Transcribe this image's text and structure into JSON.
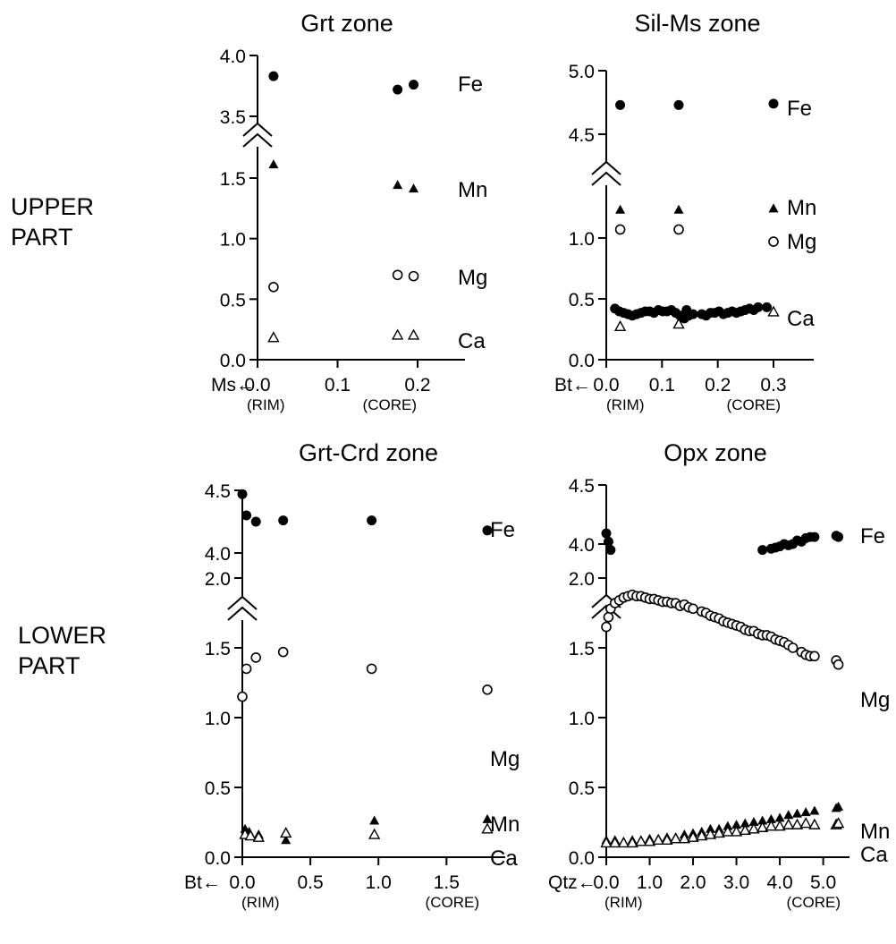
{
  "row_labels": {
    "upper": [
      "UPPER",
      "PART"
    ],
    "lower": [
      "LOWER",
      "PART"
    ]
  },
  "chart_data": [
    {
      "type": "scatter",
      "title": "Grt zone",
      "xlabel": "Ms",
      "x_range": [
        0,
        0.2
      ],
      "x_ticks": [
        "0.0",
        "0.1",
        "0.2"
      ],
      "x_start_label": "(RIM)",
      "x_end_label": "(CORE)",
      "broken_y_axis": true,
      "y_ticks_lower": [
        "0.0",
        "0.5",
        "1.0",
        "1.5"
      ],
      "y_ticks_upper": [
        "3.5",
        "4.0"
      ],
      "series": [
        {
          "name": "Fe",
          "marker": "filled-circle",
          "x": [
            0.02,
            0.175,
            0.195
          ],
          "y": [
            3.83,
            3.72,
            3.76
          ]
        },
        {
          "name": "Mn",
          "marker": "filled-triangle",
          "x": [
            0.02,
            0.175,
            0.195
          ],
          "y": [
            1.61,
            1.44,
            1.41
          ]
        },
        {
          "name": "Mg",
          "marker": "open-circle",
          "x": [
            0.02,
            0.175,
            0.195
          ],
          "y": [
            0.6,
            0.7,
            0.69
          ]
        },
        {
          "name": "Ca",
          "marker": "open-triangle",
          "x": [
            0.02,
            0.175,
            0.195
          ],
          "y": [
            0.18,
            0.2,
            0.2
          ]
        }
      ]
    },
    {
      "type": "scatter",
      "title": "Sil-Ms zone",
      "xlabel": "Bt",
      "x_range": [
        0,
        0.3
      ],
      "x_ticks": [
        "0.0",
        "0.1",
        "0.2",
        "0.3"
      ],
      "x_start_label": "(RIM)",
      "x_end_label": "(CORE)",
      "broken_y_axis": true,
      "y_ticks_lower": [
        "0.0",
        "0.5",
        "1.0"
      ],
      "y_ticks_upper": [
        "4.5",
        "5.0"
      ],
      "series": [
        {
          "name": "Fe",
          "marker": "filled-circle",
          "x": [
            0.025,
            0.13,
            0.3
          ],
          "y": [
            4.73,
            4.73,
            4.74
          ]
        },
        {
          "name": "Mn",
          "marker": "filled-triangle",
          "x": [
            0.025,
            0.13,
            0.3
          ],
          "y": [
            1.23,
            1.23,
            1.24
          ]
        },
        {
          "name": "Mg",
          "marker": "open-circle",
          "x": [
            0.025,
            0.13,
            0.3
          ],
          "y": [
            1.07,
            1.07,
            0.97
          ]
        },
        {
          "name": "Ca",
          "marker": "open-triangle",
          "x": [
            0.025,
            0.13,
            0.3
          ],
          "y": [
            0.27,
            0.29,
            0.39
          ]
        }
      ]
    },
    {
      "type": "scatter",
      "title": "Grt-Crd zone",
      "xlabel": "Bt",
      "x_range": [
        0,
        1.8
      ],
      "x_ticks": [
        "0.0",
        "0.5",
        "1.0",
        "1.5"
      ],
      "x_start_label": "(RIM)",
      "x_end_label": "(CORE)",
      "broken_y_axis": true,
      "y_ticks_lower": [
        "0.0",
        "0.5",
        "1.0",
        "1.5",
        "2.0"
      ],
      "y_ticks_upper": [
        "4.0",
        "4.5"
      ],
      "series": [
        {
          "name": "Fe",
          "marker": "filled-circle",
          "x": [
            0.0,
            0.03,
            0.1,
            0.3,
            0.95,
            1.8
          ],
          "y": [
            4.47,
            4.3,
            4.25,
            4.26,
            4.26,
            4.18
          ]
        },
        {
          "name": "Mg",
          "marker": "open-circle",
          "x": [
            0.0,
            0.03,
            0.1,
            0.3,
            0.95,
            1.8
          ],
          "y": [
            1.15,
            1.35,
            1.43,
            1.47,
            1.35,
            1.2
          ]
        },
        {
          "name": "Mn",
          "marker": "filled-triangle",
          "x": [
            0.02,
            0.05,
            0.12,
            0.32,
            0.97,
            1.8
          ],
          "y": [
            0.2,
            0.18,
            0.16,
            0.12,
            0.26,
            0.27
          ]
        },
        {
          "name": "Ca",
          "marker": "open-triangle",
          "x": [
            0.02,
            0.06,
            0.12,
            0.32,
            0.97,
            1.8
          ],
          "y": [
            0.16,
            0.15,
            0.14,
            0.17,
            0.16,
            0.2
          ]
        }
      ]
    },
    {
      "type": "scatter",
      "title": "Opx zone",
      "xlabel": "Qtz",
      "x_range": [
        0,
        5.4
      ],
      "x_ticks": [
        "0.0",
        "1.0",
        "2.0",
        "3.0",
        "4.0",
        "5.0"
      ],
      "x_start_label": "(RIM)",
      "x_end_label": "(CORE)",
      "broken_y_axis": true,
      "y_ticks_lower": [
        "0.0",
        "0.5",
        "1.0",
        "1.5",
        "2.0"
      ],
      "y_ticks_upper": [
        "4.0",
        "4.5"
      ],
      "series": [
        {
          "name": "Fe",
          "marker": "filled-circle",
          "x": [
            0.0,
            0.05,
            0.1,
            0.2,
            0.3,
            0.4,
            0.5,
            0.6,
            0.7,
            0.8,
            0.9,
            1.0,
            1.1,
            1.2,
            1.3,
            1.4,
            1.5,
            1.6,
            1.7,
            1.8,
            1.85,
            1.9,
            2.0,
            2.2,
            2.3,
            2.4,
            2.5,
            2.6,
            2.7,
            2.8,
            2.9,
            3.0,
            3.1,
            3.2,
            3.3,
            3.4,
            3.5,
            3.6,
            3.7,
            3.8,
            3.9,
            4.0,
            4.1,
            4.2,
            4.3,
            4.4,
            4.5,
            4.6,
            4.7,
            4.8,
            5.3,
            5.35
          ],
          "y": [
            4.09,
            4.02,
            3.95,
            3.93,
            3.91,
            3.9,
            3.89,
            3.88,
            3.89,
            3.9,
            3.91,
            3.91,
            3.9,
            3.92,
            3.91,
            3.91,
            3.92,
            3.9,
            3.88,
            3.86,
            3.92,
            3.88,
            3.89,
            3.89,
            3.88,
            3.9,
            3.9,
            3.91,
            3.89,
            3.9,
            3.91,
            3.9,
            3.91,
            3.92,
            3.93,
            3.92,
            3.94,
            3.95,
            3.94,
            3.96,
            3.97,
            3.98,
            4.0,
            3.99,
            4.0,
            4.03,
            4.02,
            4.05,
            4.06,
            4.06,
            4.07,
            4.06
          ]
        },
        {
          "name": "Mg",
          "marker": "open-circle",
          "x": [
            0.0,
            0.05,
            0.1,
            0.2,
            0.3,
            0.4,
            0.5,
            0.6,
            0.7,
            0.8,
            0.9,
            1.0,
            1.1,
            1.2,
            1.3,
            1.4,
            1.5,
            1.6,
            1.7,
            1.8,
            1.9,
            2.0,
            2.2,
            2.3,
            2.4,
            2.5,
            2.6,
            2.7,
            2.8,
            2.9,
            3.0,
            3.1,
            3.2,
            3.3,
            3.4,
            3.5,
            3.6,
            3.7,
            3.8,
            3.9,
            4.0,
            4.1,
            4.2,
            4.3,
            4.5,
            4.6,
            4.7,
            4.8,
            5.3,
            5.35
          ],
          "y": [
            1.65,
            1.72,
            1.78,
            1.82,
            1.84,
            1.86,
            1.87,
            1.88,
            1.87,
            1.87,
            1.86,
            1.85,
            1.85,
            1.84,
            1.83,
            1.83,
            1.82,
            1.82,
            1.8,
            1.81,
            1.79,
            1.78,
            1.76,
            1.75,
            1.73,
            1.72,
            1.71,
            1.69,
            1.68,
            1.67,
            1.66,
            1.65,
            1.63,
            1.62,
            1.62,
            1.6,
            1.59,
            1.59,
            1.58,
            1.56,
            1.55,
            1.54,
            1.52,
            1.5,
            1.47,
            1.45,
            1.44,
            1.44,
            1.41,
            1.38
          ]
        },
        {
          "name": "Mn",
          "marker": "filled-triangle",
          "x": [
            0.0,
            0.2,
            0.4,
            0.6,
            0.8,
            1.0,
            1.2,
            1.4,
            1.6,
            1.8,
            2.0,
            2.2,
            2.4,
            2.6,
            2.8,
            3.0,
            3.2,
            3.4,
            3.6,
            3.8,
            4.0,
            4.2,
            4.4,
            4.6,
            4.8,
            5.3,
            5.35
          ],
          "y": [
            0.12,
            0.12,
            0.11,
            0.12,
            0.12,
            0.13,
            0.13,
            0.14,
            0.14,
            0.16,
            0.17,
            0.18,
            0.2,
            0.2,
            0.22,
            0.23,
            0.24,
            0.25,
            0.26,
            0.27,
            0.28,
            0.3,
            0.31,
            0.32,
            0.33,
            0.35,
            0.36
          ]
        },
        {
          "name": "Ca",
          "marker": "open-triangle",
          "x": [
            0.0,
            0.2,
            0.4,
            0.6,
            0.8,
            1.0,
            1.2,
            1.4,
            1.6,
            1.8,
            2.0,
            2.2,
            2.4,
            2.6,
            2.8,
            3.0,
            3.2,
            3.4,
            3.6,
            3.8,
            4.0,
            4.2,
            4.4,
            4.6,
            4.8,
            5.3,
            5.35
          ],
          "y": [
            0.1,
            0.1,
            0.1,
            0.1,
            0.11,
            0.11,
            0.12,
            0.12,
            0.13,
            0.13,
            0.14,
            0.15,
            0.16,
            0.17,
            0.18,
            0.18,
            0.19,
            0.2,
            0.21,
            0.22,
            0.22,
            0.23,
            0.23,
            0.24,
            0.23,
            0.23,
            0.24
          ]
        }
      ]
    }
  ]
}
